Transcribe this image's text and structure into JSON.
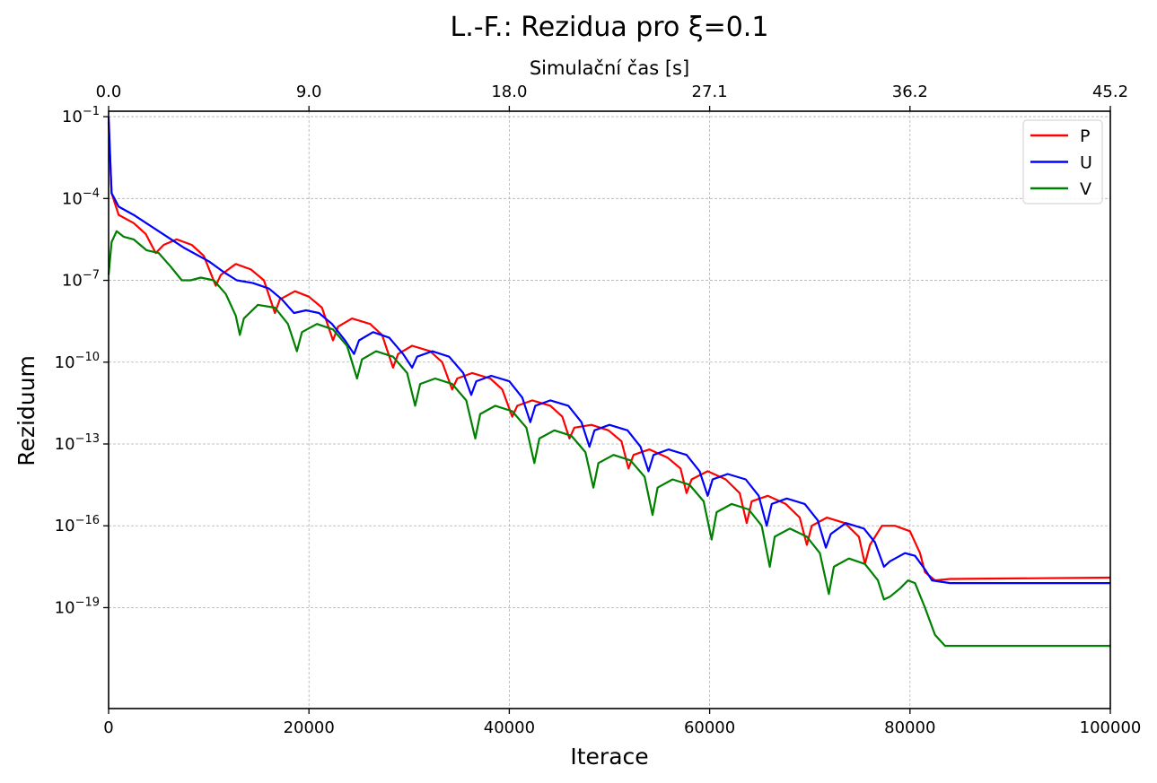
{
  "chart_data": {
    "type": "line",
    "title": "L.-F.: Rezidua pro  ξ=0.1",
    "xlabel": "Iterace",
    "ylabel": "Reziduum",
    "top_xlabel": "Simulační čas [s]",
    "xlim": [
      0,
      100000
    ],
    "ylim_log10": [
      -22.7,
      -0.8
    ],
    "yscale": "log",
    "grid": true,
    "legend_position": "top-right",
    "x_ticks": [
      "0",
      "20000",
      "40000",
      "60000",
      "80000",
      "100000"
    ],
    "x_tick_values": [
      0,
      20000,
      40000,
      60000,
      80000,
      100000
    ],
    "top_ticks": [
      "0.0",
      "9.0",
      "18.0",
      "27.1",
      "36.2",
      "45.2"
    ],
    "top_tick_values": [
      0,
      20000,
      40000,
      60000,
      80000,
      100000
    ],
    "y_ticks": [
      "10−1",
      "10−4",
      "10−7",
      "10−10",
      "10−13",
      "10−16",
      "10−19"
    ],
    "y_tick_exponents": [
      -1,
      -4,
      -7,
      -10,
      -13,
      -16,
      -19
    ],
    "series": [
      {
        "name": "P",
        "color": "#ff0000",
        "points": [
          [
            0,
            -1.2
          ],
          [
            300,
            -3.8
          ],
          [
            1000,
            -4.6
          ],
          [
            2500,
            -4.9
          ],
          [
            3700,
            -5.3
          ],
          [
            4700,
            -6.0
          ],
          [
            5500,
            -5.7
          ],
          [
            6800,
            -5.5
          ],
          [
            8300,
            -5.7
          ],
          [
            9500,
            -6.1
          ],
          [
            10700,
            -7.2
          ],
          [
            11200,
            -6.8
          ],
          [
            12700,
            -6.4
          ],
          [
            14200,
            -6.6
          ],
          [
            15500,
            -7.0
          ],
          [
            16600,
            -8.2
          ],
          [
            17100,
            -7.7
          ],
          [
            18600,
            -7.4
          ],
          [
            20000,
            -7.6
          ],
          [
            21300,
            -8.0
          ],
          [
            22400,
            -9.2
          ],
          [
            22900,
            -8.7
          ],
          [
            24300,
            -8.4
          ],
          [
            26100,
            -8.6
          ],
          [
            27300,
            -9.0
          ],
          [
            28400,
            -10.2
          ],
          [
            28900,
            -9.7
          ],
          [
            30300,
            -9.4
          ],
          [
            32100,
            -9.6
          ],
          [
            33300,
            -10.0
          ],
          [
            34300,
            -11.0
          ],
          [
            34800,
            -10.6
          ],
          [
            36300,
            -10.4
          ],
          [
            38100,
            -10.6
          ],
          [
            39300,
            -11.0
          ],
          [
            40300,
            -12.0
          ],
          [
            40800,
            -11.6
          ],
          [
            42300,
            -11.4
          ],
          [
            44100,
            -11.6
          ],
          [
            45300,
            -12.0
          ],
          [
            46000,
            -12.8
          ],
          [
            46500,
            -12.4
          ],
          [
            48200,
            -12.3
          ],
          [
            49900,
            -12.5
          ],
          [
            51200,
            -12.9
          ],
          [
            51900,
            -13.9
          ],
          [
            52400,
            -13.4
          ],
          [
            54000,
            -13.2
          ],
          [
            55800,
            -13.5
          ],
          [
            57100,
            -13.9
          ],
          [
            57700,
            -14.8
          ],
          [
            58200,
            -14.3
          ],
          [
            59800,
            -14.0
          ],
          [
            61600,
            -14.3
          ],
          [
            63000,
            -14.8
          ],
          [
            63700,
            -15.9
          ],
          [
            64200,
            -15.1
          ],
          [
            65800,
            -14.9
          ],
          [
            67600,
            -15.2
          ],
          [
            69000,
            -15.7
          ],
          [
            69700,
            -16.7
          ],
          [
            70200,
            -16.0
          ],
          [
            71700,
            -15.7
          ],
          [
            73500,
            -15.9
          ],
          [
            74900,
            -16.4
          ],
          [
            75500,
            -17.4
          ],
          [
            76000,
            -16.7
          ],
          [
            77200,
            -16.0
          ],
          [
            78500,
            -16.0
          ],
          [
            80000,
            -16.2
          ],
          [
            81000,
            -17.0
          ],
          [
            81500,
            -17.7
          ],
          [
            82500,
            -18.0
          ],
          [
            84000,
            -17.95
          ],
          [
            100000,
            -17.9
          ]
        ]
      },
      {
        "name": "U",
        "color": "#0000ff",
        "points": [
          [
            0,
            -1.0
          ],
          [
            300,
            -3.8
          ],
          [
            1000,
            -4.3
          ],
          [
            2500,
            -4.6
          ],
          [
            5000,
            -5.2
          ],
          [
            7500,
            -5.8
          ],
          [
            10000,
            -6.3
          ],
          [
            11500,
            -6.7
          ],
          [
            12800,
            -7.0
          ],
          [
            14400,
            -7.1
          ],
          [
            16000,
            -7.3
          ],
          [
            17300,
            -7.7
          ],
          [
            18500,
            -8.2
          ],
          [
            19700,
            -8.1
          ],
          [
            21000,
            -8.2
          ],
          [
            22300,
            -8.6
          ],
          [
            23600,
            -9.2
          ],
          [
            24500,
            -9.7
          ],
          [
            25000,
            -9.2
          ],
          [
            26400,
            -8.9
          ],
          [
            28000,
            -9.1
          ],
          [
            29400,
            -9.7
          ],
          [
            30300,
            -10.2
          ],
          [
            30800,
            -9.8
          ],
          [
            32300,
            -9.6
          ],
          [
            34000,
            -9.8
          ],
          [
            35400,
            -10.4
          ],
          [
            36200,
            -11.2
          ],
          [
            36700,
            -10.7
          ],
          [
            38200,
            -10.5
          ],
          [
            40000,
            -10.7
          ],
          [
            41300,
            -11.3
          ],
          [
            42100,
            -12.2
          ],
          [
            42600,
            -11.6
          ],
          [
            44100,
            -11.4
          ],
          [
            45900,
            -11.6
          ],
          [
            47200,
            -12.2
          ],
          [
            48000,
            -13.1
          ],
          [
            48500,
            -12.5
          ],
          [
            50000,
            -12.3
          ],
          [
            51800,
            -12.5
          ],
          [
            53100,
            -13.1
          ],
          [
            53900,
            -14.0
          ],
          [
            54400,
            -13.4
          ],
          [
            55900,
            -13.2
          ],
          [
            57700,
            -13.4
          ],
          [
            59000,
            -14.0
          ],
          [
            59800,
            -14.9
          ],
          [
            60300,
            -14.3
          ],
          [
            61800,
            -14.1
          ],
          [
            63600,
            -14.3
          ],
          [
            64900,
            -14.9
          ],
          [
            65700,
            -16.0
          ],
          [
            66200,
            -15.2
          ],
          [
            67700,
            -15.0
          ],
          [
            69500,
            -15.2
          ],
          [
            70800,
            -15.8
          ],
          [
            71600,
            -16.8
          ],
          [
            72100,
            -16.3
          ],
          [
            73600,
            -15.9
          ],
          [
            75400,
            -16.1
          ],
          [
            76500,
            -16.6
          ],
          [
            77400,
            -17.5
          ],
          [
            78000,
            -17.3
          ],
          [
            79500,
            -17.0
          ],
          [
            80500,
            -17.1
          ],
          [
            81500,
            -17.6
          ],
          [
            82200,
            -18.0
          ],
          [
            84000,
            -18.1
          ],
          [
            100000,
            -18.1
          ]
        ]
      },
      {
        "name": "V",
        "color": "#008000",
        "points": [
          [
            0,
            -6.8
          ],
          [
            300,
            -5.6
          ],
          [
            800,
            -5.2
          ],
          [
            1500,
            -5.4
          ],
          [
            2500,
            -5.5
          ],
          [
            3800,
            -5.9
          ],
          [
            5000,
            -6.0
          ],
          [
            6200,
            -6.5
          ],
          [
            7300,
            -7.0
          ],
          [
            8200,
            -7.0
          ],
          [
            9200,
            -6.9
          ],
          [
            10500,
            -7.0
          ],
          [
            11700,
            -7.5
          ],
          [
            12700,
            -8.3
          ],
          [
            13100,
            -9.0
          ],
          [
            13500,
            -8.4
          ],
          [
            14900,
            -7.9
          ],
          [
            16600,
            -8.0
          ],
          [
            17900,
            -8.6
          ],
          [
            18800,
            -9.6
          ],
          [
            19300,
            -8.9
          ],
          [
            20800,
            -8.6
          ],
          [
            22400,
            -8.8
          ],
          [
            23800,
            -9.4
          ],
          [
            24800,
            -10.6
          ],
          [
            25300,
            -9.9
          ],
          [
            26700,
            -9.6
          ],
          [
            28400,
            -9.8
          ],
          [
            29800,
            -10.4
          ],
          [
            30600,
            -11.6
          ],
          [
            31100,
            -10.8
          ],
          [
            32600,
            -10.6
          ],
          [
            34300,
            -10.8
          ],
          [
            35700,
            -11.4
          ],
          [
            36600,
            -12.8
          ],
          [
            37100,
            -11.9
          ],
          [
            38600,
            -11.6
          ],
          [
            40300,
            -11.8
          ],
          [
            41700,
            -12.4
          ],
          [
            42500,
            -13.7
          ],
          [
            43000,
            -12.8
          ],
          [
            44500,
            -12.5
          ],
          [
            46200,
            -12.7
          ],
          [
            47600,
            -13.3
          ],
          [
            48400,
            -14.6
          ],
          [
            48900,
            -13.7
          ],
          [
            50400,
            -13.4
          ],
          [
            52100,
            -13.6
          ],
          [
            53500,
            -14.2
          ],
          [
            54300,
            -15.6
          ],
          [
            54800,
            -14.6
          ],
          [
            56300,
            -14.3
          ],
          [
            58000,
            -14.5
          ],
          [
            59400,
            -15.1
          ],
          [
            60200,
            -16.5
          ],
          [
            60700,
            -15.5
          ],
          [
            62200,
            -15.2
          ],
          [
            63900,
            -15.4
          ],
          [
            65200,
            -16.0
          ],
          [
            66000,
            -17.5
          ],
          [
            66500,
            -16.4
          ],
          [
            68000,
            -16.1
          ],
          [
            69700,
            -16.4
          ],
          [
            71000,
            -17.0
          ],
          [
            71900,
            -18.5
          ],
          [
            72400,
            -17.5
          ],
          [
            73900,
            -17.2
          ],
          [
            75500,
            -17.4
          ],
          [
            76800,
            -18.0
          ],
          [
            77400,
            -18.7
          ],
          [
            78000,
            -18.6
          ],
          [
            79000,
            -18.3
          ],
          [
            79800,
            -18.0
          ],
          [
            80500,
            -18.1
          ],
          [
            81500,
            -19.0
          ],
          [
            82500,
            -20.0
          ],
          [
            83500,
            -20.4
          ],
          [
            100000,
            -20.4
          ]
        ]
      }
    ]
  }
}
